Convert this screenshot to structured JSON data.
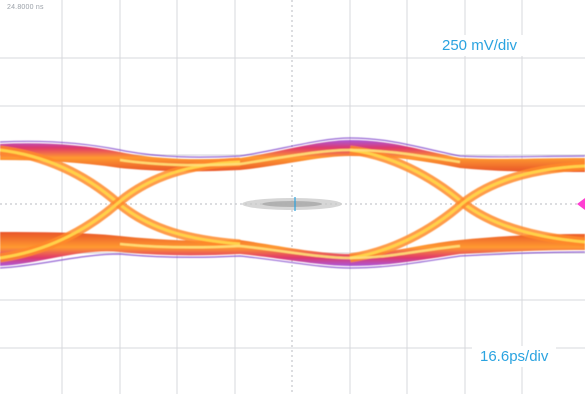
{
  "scope": {
    "top_readout": "24.8000 ns",
    "vertical_scale": "250 mV/div",
    "horizontal_scale": "16.6ps/div"
  },
  "colors": {
    "grid": "#d7d9dc",
    "center_axis": "#b8bbc0",
    "trace_outer": "#b52fa0",
    "trace_mid": "#e8542a",
    "trace_core": "#ffd24a",
    "label_text": "#2aa3e0",
    "ref_marker": "#ff3fd2",
    "inner_noise": "#c8c8c8"
  }
}
